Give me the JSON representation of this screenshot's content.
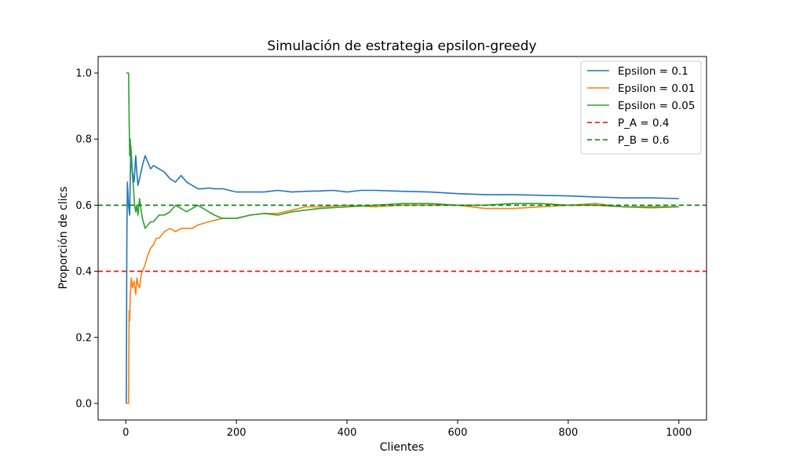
{
  "chart_data": {
    "type": "line",
    "title": "Simulación de estrategia epsilon-greedy",
    "xlabel": "Clientes",
    "ylabel": "Proporción de clics",
    "xlim": [
      -50,
      1050
    ],
    "ylim": [
      -0.05,
      1.05
    ],
    "xticks": [
      0,
      200,
      400,
      600,
      800,
      1000
    ],
    "yticks": [
      0.0,
      0.2,
      0.4,
      0.6,
      0.8,
      1.0
    ],
    "xtick_labels": [
      "0",
      "200",
      "400",
      "600",
      "800",
      "1000"
    ],
    "ytick_labels": [
      "0.0",
      "0.2",
      "0.4",
      "0.6",
      "0.8",
      "1.0"
    ],
    "grid": false,
    "legend_position": "top-right",
    "series": [
      {
        "name": "Epsilon = 0.1",
        "color": "#1f77b4",
        "style": "solid",
        "x": [
          1,
          2,
          3,
          5,
          7,
          9,
          12,
          15,
          18,
          20,
          22,
          25,
          30,
          35,
          40,
          45,
          50,
          60,
          70,
          80,
          90,
          100,
          110,
          120,
          130,
          140,
          150,
          160,
          175,
          200,
          225,
          250,
          275,
          300,
          325,
          350,
          375,
          400,
          425,
          450,
          500,
          550,
          600,
          650,
          700,
          750,
          800,
          850,
          900,
          950,
          1000
        ],
        "y": [
          0.0,
          0.5,
          0.67,
          0.6,
          0.57,
          0.78,
          0.7,
          0.67,
          0.75,
          0.7,
          0.66,
          0.68,
          0.72,
          0.75,
          0.73,
          0.71,
          0.72,
          0.71,
          0.7,
          0.68,
          0.67,
          0.69,
          0.67,
          0.66,
          0.65,
          0.65,
          0.652,
          0.65,
          0.65,
          0.64,
          0.64,
          0.64,
          0.645,
          0.64,
          0.642,
          0.643,
          0.645,
          0.64,
          0.645,
          0.645,
          0.642,
          0.64,
          0.635,
          0.632,
          0.632,
          0.63,
          0.628,
          0.625,
          0.622,
          0.622,
          0.62
        ]
      },
      {
        "name": "Epsilon = 0.01",
        "color": "#ff7f0e",
        "style": "solid",
        "x": [
          1,
          3,
          5,
          6,
          7,
          8,
          10,
          12,
          15,
          18,
          20,
          22,
          25,
          28,
          30,
          35,
          40,
          45,
          50,
          55,
          60,
          70,
          80,
          90,
          100,
          110,
          120,
          130,
          150,
          175,
          200,
          225,
          250,
          275,
          300,
          325,
          350,
          400,
          450,
          500,
          550,
          600,
          650,
          700,
          750,
          800,
          850,
          900,
          950,
          1000
        ],
        "y": [
          0.0,
          0.0,
          0.0,
          0.28,
          0.25,
          0.33,
          0.38,
          0.35,
          0.37,
          0.33,
          0.38,
          0.36,
          0.35,
          0.39,
          0.4,
          0.42,
          0.45,
          0.47,
          0.48,
          0.5,
          0.5,
          0.52,
          0.53,
          0.52,
          0.53,
          0.53,
          0.53,
          0.54,
          0.55,
          0.56,
          0.56,
          0.57,
          0.575,
          0.575,
          0.585,
          0.595,
          0.595,
          0.6,
          0.595,
          0.6,
          0.6,
          0.6,
          0.59,
          0.59,
          0.595,
          0.6,
          0.605,
          0.595,
          0.592,
          0.595
        ]
      },
      {
        "name": "Epsilon = 0.05",
        "color": "#2ca02c",
        "style": "solid",
        "x": [
          1,
          3,
          5,
          6,
          7,
          8,
          10,
          12,
          14,
          16,
          18,
          20,
          22,
          25,
          28,
          30,
          35,
          40,
          45,
          50,
          55,
          60,
          70,
          80,
          90,
          100,
          110,
          120,
          130,
          140,
          150,
          160,
          175,
          200,
          225,
          250,
          275,
          300,
          325,
          350,
          400,
          450,
          500,
          550,
          600,
          650,
          700,
          750,
          800,
          850,
          900,
          950,
          1000
        ],
        "y": [
          1.0,
          1.0,
          1.0,
          0.86,
          0.75,
          0.8,
          0.73,
          0.69,
          0.65,
          0.6,
          0.58,
          0.6,
          0.57,
          0.62,
          0.58,
          0.56,
          0.53,
          0.54,
          0.55,
          0.55,
          0.56,
          0.57,
          0.57,
          0.58,
          0.6,
          0.59,
          0.58,
          0.59,
          0.6,
          0.59,
          0.58,
          0.57,
          0.56,
          0.56,
          0.57,
          0.575,
          0.57,
          0.58,
          0.585,
          0.59,
          0.595,
          0.6,
          0.605,
          0.605,
          0.6,
          0.6,
          0.605,
          0.605,
          0.6,
          0.6,
          0.595,
          0.595,
          0.595
        ]
      },
      {
        "name": "P_A = 0.4",
        "color": "#ff0000",
        "style": "dashed",
        "hline": 0.4
      },
      {
        "name": "P_B = 0.6",
        "color": "#008000",
        "style": "dashed",
        "hline": 0.6
      }
    ]
  }
}
